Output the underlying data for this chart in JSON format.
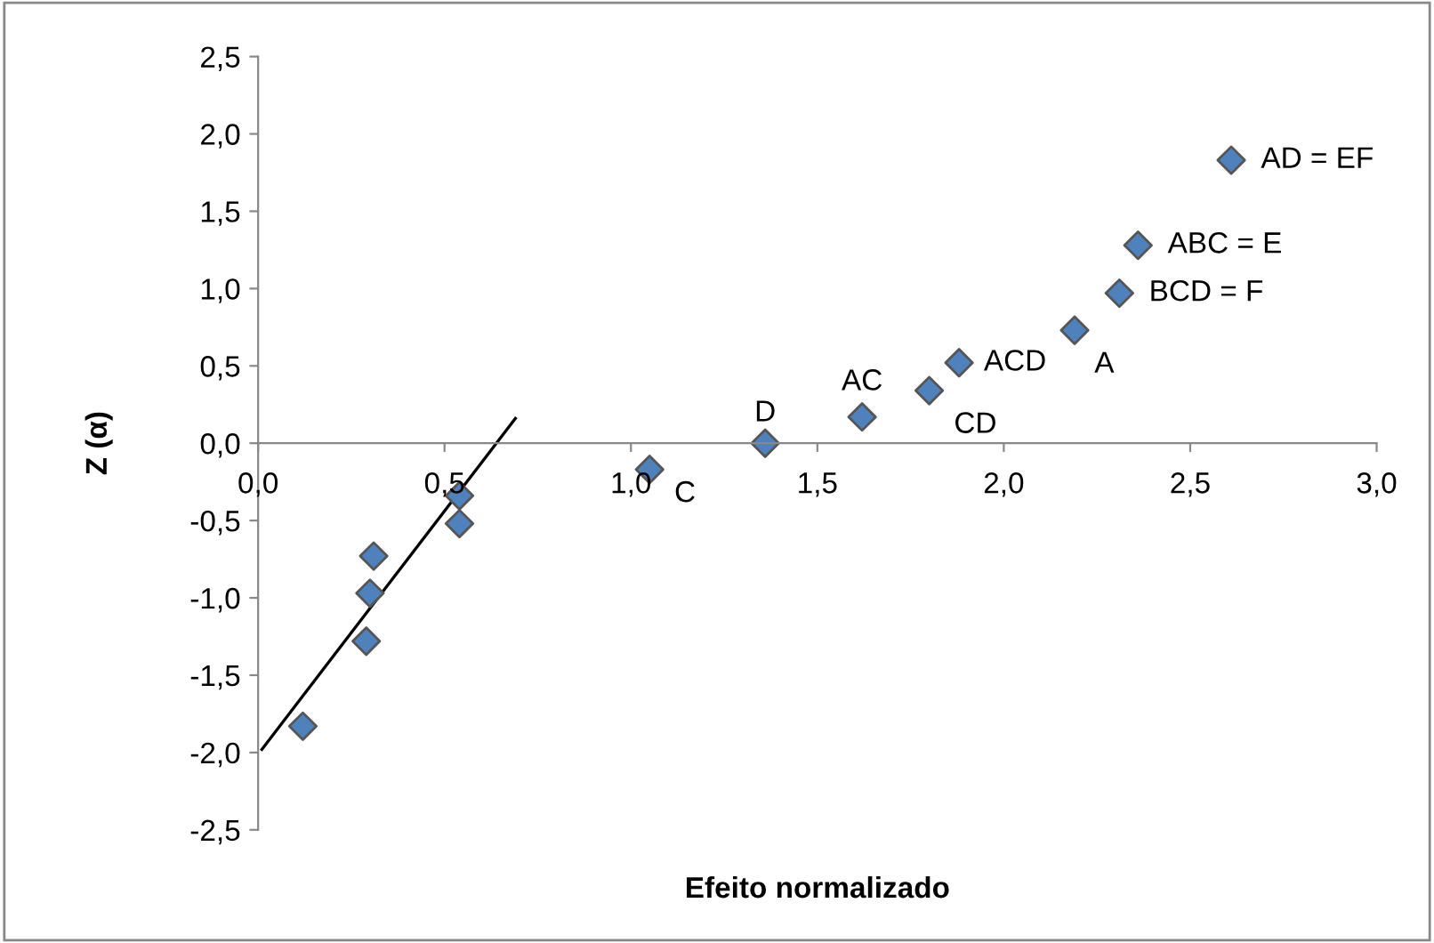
{
  "chart_data": {
    "type": "scatter",
    "xlabel": "Efeito normalizado",
    "ylabel": "Z (α)",
    "xlim": [
      0,
      3
    ],
    "ylim": [
      -2.5,
      2.5
    ],
    "xticks": [
      {
        "value": 0,
        "label": "0,0"
      },
      {
        "value": 0.5,
        "label": "0,5"
      },
      {
        "value": 1,
        "label": "1,0"
      },
      {
        "value": 1.5,
        "label": "1,5"
      },
      {
        "value": 2,
        "label": "2,0"
      },
      {
        "value": 2.5,
        "label": "2,5"
      },
      {
        "value": 3,
        "label": "3,0"
      }
    ],
    "yticks": [
      {
        "value": -2.5,
        "label": "-2,5"
      },
      {
        "value": -2,
        "label": "-2,0"
      },
      {
        "value": -1.5,
        "label": "-1,5"
      },
      {
        "value": -1,
        "label": "-1,0"
      },
      {
        "value": -0.5,
        "label": "-0,5"
      },
      {
        "value": 0,
        "label": "0,0"
      },
      {
        "value": 0.5,
        "label": "0,5"
      },
      {
        "value": 1,
        "label": "1,0"
      },
      {
        "value": 1.5,
        "label": "1,5"
      },
      {
        "value": 2,
        "label": "2,0"
      },
      {
        "value": 2.5,
        "label": "2,5"
      }
    ],
    "grid": false,
    "legend": false,
    "marker": "diamond",
    "series": [
      {
        "color": "#4f81bd",
        "x": [
          0.12,
          0.29,
          0.3,
          0.31,
          0.54,
          0.54,
          1.05,
          1.36,
          1.62,
          1.8,
          1.88,
          2.19,
          2.31,
          2.36,
          2.61
        ],
        "values": [
          -1.83,
          -1.28,
          -0.97,
          -0.73,
          -0.52,
          -0.34,
          -0.17,
          0,
          0.17,
          0.34,
          0.52,
          0.73,
          0.97,
          1.28,
          1.83
        ]
      },
      {
        "type": "line",
        "color": "#000000",
        "marker": "none",
        "x": [
          0.01,
          0.69
        ],
        "values": [
          -1.98,
          0.16
        ]
      }
    ],
    "annotations": [
      {
        "text": "C",
        "x": 1.05,
        "y": -0.17
      },
      {
        "text": "D",
        "x": 1.36,
        "y": 0
      },
      {
        "text": "AC",
        "x": 1.62,
        "y": 0.17
      },
      {
        "text": "CD",
        "x": 1.8,
        "y": 0.34
      },
      {
        "text": "ACD",
        "x": 1.88,
        "y": 0.52
      },
      {
        "text": "A",
        "x": 2.19,
        "y": 0.73
      },
      {
        "text": "BCD = F",
        "x": 2.31,
        "y": 0.97
      },
      {
        "text": "ABC = E",
        "x": 2.36,
        "y": 1.28
      },
      {
        "text": "AD = EF",
        "x": 2.61,
        "y": 1.83
      }
    ]
  }
}
